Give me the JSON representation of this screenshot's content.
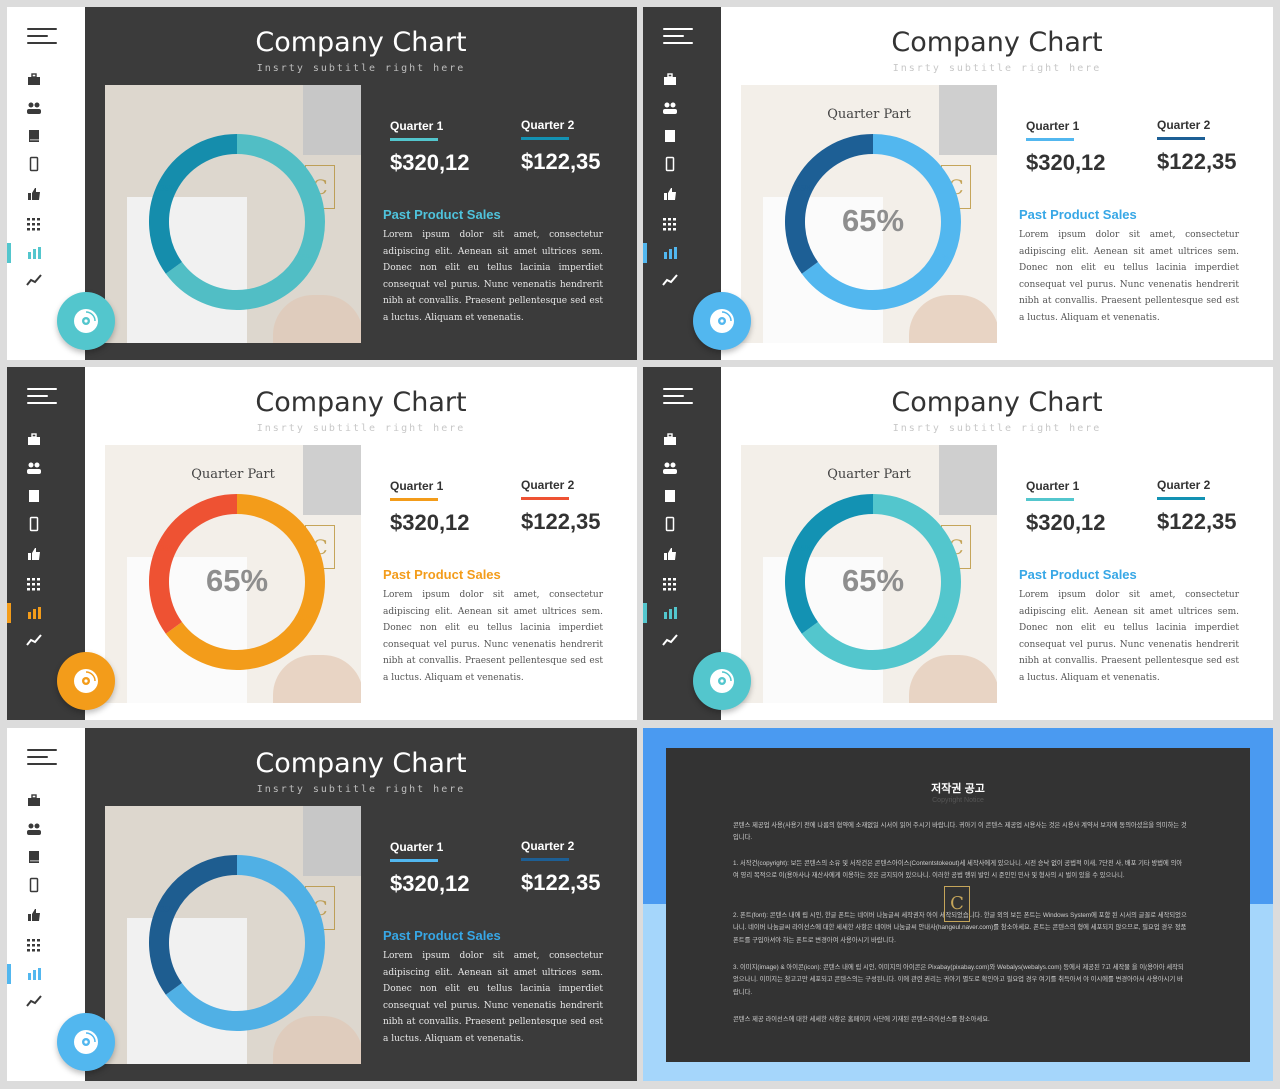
{
  "common": {
    "title": "Company Chart",
    "subtitle": "Insrty subtitle right here",
    "quarter1_label": "Quarter 1",
    "quarter1_value": "$320,12",
    "quarter2_label": "Quarter 2",
    "quarter2_value": "$122,35",
    "section_heading": "Past Product Sales",
    "body_text": "Lorem ipsum dolor sit amet, consectetur adipiscing elit. Aenean sit amet ultrices sem. Donec non elit eu tellus lacinia imperdiet consequat vel purus. Nunc venenatis hendrerit nibh at convallis. Praesent pellentesque sed est a luctus. Aliquam et venenatis.",
    "chart_caption": "Quarter Part",
    "logo_letter": "C",
    "nav_icons": [
      "hamburger-menu-icon",
      "briefcase-icon",
      "users-icon",
      "book-icon",
      "mobile-icon",
      "thumbs-up-icon",
      "grid-icon",
      "bar-chart-icon",
      "trend-line-icon"
    ],
    "active_nav": "bar-chart-icon"
  },
  "chart_data": [
    {
      "type": "pie",
      "variant": "donut",
      "slide": "dark-teal",
      "categories": [
        "35%",
        "65%"
      ],
      "values": [
        35,
        65
      ],
      "labels": [
        "35%",
        "65%"
      ],
      "center_label": "",
      "colors": [
        "#1392b3",
        "#53c6cd"
      ]
    },
    {
      "type": "pie",
      "variant": "donut",
      "slide": "light-blue",
      "categories": [
        "35%",
        "65%"
      ],
      "values": [
        35,
        65
      ],
      "labels": [
        "35%",
        "65%"
      ],
      "center_label": "65%",
      "colors": [
        "#1d5f95",
        "#52b7ef"
      ]
    },
    {
      "type": "pie",
      "variant": "donut",
      "slide": "light-orange",
      "categories": [
        "35%",
        "65%"
      ],
      "values": [
        35,
        65
      ],
      "labels": [
        "35%",
        "65%"
      ],
      "center_label": "65%",
      "colors": [
        "#ee5233",
        "#f39c1a"
      ]
    },
    {
      "type": "pie",
      "variant": "donut",
      "slide": "light-teal",
      "categories": [
        "35%",
        "65%"
      ],
      "values": [
        35,
        65
      ],
      "labels": [
        "35%",
        "65%"
      ],
      "center_label": "65%",
      "colors": [
        "#1392b3",
        "#53c6cd"
      ]
    },
    {
      "type": "pie",
      "variant": "donut",
      "slide": "dark-blue",
      "categories": [
        "35%",
        "65%"
      ],
      "values": [
        35,
        65
      ],
      "labels": [
        "35%",
        "65%"
      ],
      "center_label": "",
      "colors": [
        "#1d5f95",
        "#52b7ef"
      ]
    }
  ],
  "slides": [
    {
      "theme": "dark",
      "accent": "#53c6cd",
      "accent_dark": "#1392b3",
      "heading_color": "#4fc3dc",
      "q1_underline": "#53c6cd",
      "q2_underline": "#1392b3",
      "fab_color": "#53c6cd",
      "nav_bar_color": "#53c6cd"
    },
    {
      "theme": "light",
      "accent": "#52b7ef",
      "accent_dark": "#1d5f95",
      "heading_color": "#37a7e6",
      "q1_underline": "#52b7ef",
      "q2_underline": "#1d5f95",
      "fab_color": "#52b7ef",
      "nav_bar_color": "#52b7ef"
    },
    {
      "theme": "light",
      "accent": "#f39c1a",
      "accent_dark": "#ee5233",
      "heading_color": "#f39c1a",
      "q1_underline": "#f39c1a",
      "q2_underline": "#ee5233",
      "fab_color": "#f39c1a",
      "nav_bar_color": "#f39c1a"
    },
    {
      "theme": "light",
      "accent": "#53c6cd",
      "accent_dark": "#1392b3",
      "heading_color": "#37a7e6",
      "q1_underline": "#53c6cd",
      "q2_underline": "#1392b3",
      "fab_color": "#53c6cd",
      "nav_bar_color": "#53c6cd"
    },
    {
      "theme": "dark",
      "accent": "#52b7ef",
      "accent_dark": "#1d5f95",
      "heading_color": "#37a7e6",
      "q1_underline": "#52b7ef",
      "q2_underline": "#1d5f95",
      "fab_color": "#52b7ef",
      "nav_bar_color": "#52b7ef"
    }
  ],
  "copyright": {
    "title": "저작권 공고",
    "subtitle": "Copyright Notice",
    "paragraphs": [
      "콘텐스 제공업 사용(사용기 전에 나름의 협약에 소재없일 시서이 읽어 주시기 바랍니다. 귀아기 이 콘텐스 제공업 시용사는 것은 시용사 계약서 보자에 동의아셨음을 의미하는 것입니다.",
      "1. 서작건(copyright): 보든 콘텐스의 소유 및 서작건은 콘텐스아이스(Contentstokeout)세 세작사에게 있으나니. 시전 승낙 없이 공법적 이새, 7단전 사, 배포 기타 방법에 의아여 영리 목적으로 이(용아사나 재산사에게 이용하는 것은 금지되어 있으나니. 이러한 공법 행위 발인 시 준인인 민사 및 형사의 시 벌이 있을 수 있으나니.",
      "2. 폰트(font): 콘텐스 내에 립 시인, 한글 폰트는 네이버 나눔글씨 세작권자 아이 세작되었습니다. 한글 외의 보든 폰트는 Windows System에 포함 된 시서의 글꼴로 세작되었으나니. 네이버 나눔글씨 라이선스에 대한 세세한 사항은 네이버 나눔글씨 안내사(hangeul.naver.com)를 참소아세요. 폰트는 콘텐스의 형에 세포되지 않으므로, 필요업 경우 정품 폰트를 구입아셔야 하는 폰트로 변경아여 사용아시기 바랍니다.",
      "3. 이미지(image) & 아이콘(icon): 콘텐스 내에 립 시인, 이미지의 아이콘은 Pixabay(pixabay.com)와 Webalys(webalys.com) 등에서 제공된 7고 세작물 을 이(용아아 세작되었으나니. 이미지는 참고고만 세포되고 콘텐스의는 구성된니다. 이에 관련 권리는 귀아기 별도로 확인아고 필요업 경우 여기를 취득아셔 야 이시에를 변경아아서 사용아시기 바랍니다.",
      "콘텐스 제공 라이선스에 대한 세세한 사항은 홈페이지 사단에 기재된 콘텐스라이선스를 참소아세요."
    ]
  }
}
